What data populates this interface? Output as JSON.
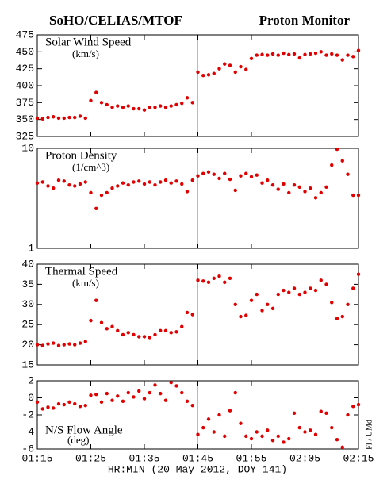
{
  "title_left": "SoHO/CELIAS/MTOF",
  "title_right": "Proton Monitor",
  "xlabel": "HR:MIN (20 May 2012, DOY 141)",
  "credit": "FI / UMd",
  "chart_data": [
    {
      "type": "scatter",
      "title": "Solar Wind Speed",
      "unit": "(km/s)",
      "color": "#e00000",
      "x": [
        75,
        76,
        77,
        78,
        79,
        80,
        81,
        82,
        83,
        84,
        85,
        86,
        87,
        88,
        89,
        90,
        91,
        92,
        93,
        94,
        95,
        96,
        97,
        98,
        99,
        100,
        101,
        102,
        103,
        104,
        105,
        106,
        107,
        108,
        109,
        110,
        111,
        112,
        113,
        114,
        115,
        116,
        117,
        118,
        119,
        120,
        121,
        122,
        123,
        124,
        125,
        126,
        127,
        128,
        129,
        130,
        131,
        132,
        133,
        134,
        135
      ],
      "values": [
        352,
        351,
        353,
        354,
        352,
        352,
        353,
        353,
        355,
        352,
        378,
        390,
        375,
        372,
        368,
        370,
        368,
        370,
        366,
        366,
        364,
        368,
        368,
        370,
        368,
        370,
        372,
        374,
        382,
        375,
        420,
        415,
        416,
        418,
        425,
        432,
        430,
        420,
        428,
        424,
        440,
        445,
        446,
        445,
        447,
        445,
        448,
        446,
        447,
        441,
        446,
        447,
        448,
        450,
        445,
        447,
        445,
        438,
        445,
        443,
        452
      ],
      "xlim": [
        75,
        135
      ],
      "xticks": [
        75,
        85,
        95,
        105,
        115,
        125,
        135
      ],
      "vline": 105,
      "ylim": [
        325,
        475
      ],
      "yticks": [
        325,
        350,
        375,
        400,
        425,
        450,
        475
      ]
    },
    {
      "type": "scatter",
      "title": "Proton Density",
      "unit": "(1/cm^3)",
      "color": "#e00000",
      "log_scale": true,
      "x": [
        75,
        76,
        77,
        78,
        79,
        80,
        81,
        82,
        83,
        84,
        85,
        86,
        87,
        88,
        89,
        90,
        91,
        92,
        93,
        94,
        95,
        96,
        97,
        98,
        99,
        100,
        101,
        102,
        103,
        104,
        105,
        106,
        107,
        108,
        109,
        110,
        111,
        112,
        113,
        114,
        115,
        116,
        117,
        118,
        119,
        120,
        121,
        122,
        123,
        124,
        125,
        126,
        127,
        128,
        129,
        130,
        131,
        132,
        133,
        134,
        135
      ],
      "values": [
        4.5,
        4.6,
        4.2,
        4.0,
        4.8,
        4.7,
        4.3,
        4.2,
        4.4,
        4.6,
        3.6,
        2.5,
        3.4,
        3.6,
        4.0,
        4.2,
        4.5,
        4.3,
        4.6,
        4.7,
        4.4,
        4.6,
        4.3,
        4.6,
        4.8,
        4.5,
        4.7,
        4.4,
        3.7,
        4.8,
        5.3,
        5.6,
        5.8,
        5.5,
        5.0,
        5.6,
        4.9,
        3.8,
        5.3,
        5.6,
        5.2,
        5.4,
        4.5,
        4.8,
        4.3,
        3.9,
        4.4,
        3.6,
        4.3,
        4.1,
        3.7,
        4.0,
        3.2,
        3.6,
        4.1,
        6.8,
        9.8,
        7.5,
        5.5,
        3.4,
        3.4
      ],
      "xlim": [
        75,
        135
      ],
      "xticks": [
        75,
        85,
        95,
        105,
        115,
        125,
        135
      ],
      "vline": 105,
      "ylim": [
        1,
        10
      ],
      "yticks": [
        1,
        10
      ]
    },
    {
      "type": "scatter",
      "title": "Thermal Speed",
      "unit": "(km/s)",
      "color": "#e00000",
      "x": [
        75,
        76,
        77,
        78,
        79,
        80,
        81,
        82,
        83,
        84,
        85,
        86,
        87,
        88,
        89,
        90,
        91,
        92,
        93,
        94,
        95,
        96,
        97,
        98,
        99,
        100,
        101,
        102,
        103,
        104,
        105,
        106,
        107,
        108,
        109,
        110,
        111,
        112,
        113,
        114,
        115,
        116,
        117,
        118,
        119,
        120,
        121,
        122,
        123,
        124,
        125,
        126,
        127,
        128,
        129,
        130,
        131,
        132,
        133,
        134,
        135
      ],
      "values": [
        20,
        19.8,
        20.2,
        20.4,
        19.8,
        20,
        20.2,
        20,
        20.4,
        20.8,
        26,
        31,
        25.5,
        24,
        24.5,
        23.5,
        22.5,
        23,
        22.5,
        22,
        22,
        21.8,
        22.5,
        23.5,
        23.5,
        23,
        23.2,
        24.5,
        28,
        27.5,
        36,
        35.8,
        35.5,
        36.5,
        37,
        35.5,
        36.5,
        30,
        27,
        27.3,
        31,
        32.5,
        28.5,
        30,
        29,
        32.5,
        33.5,
        33,
        34,
        32.5,
        33,
        34,
        33.5,
        36,
        35,
        30.5,
        26.5,
        27,
        30,
        34,
        37.5
      ],
      "xlim": [
        75,
        135
      ],
      "xticks": [
        75,
        85,
        95,
        105,
        115,
        125,
        135
      ],
      "vline": 105,
      "ylim": [
        15,
        40
      ],
      "yticks": [
        15,
        20,
        25,
        30,
        35,
        40
      ]
    },
    {
      "type": "scatter",
      "title": "N/S Flow Angle",
      "unit": "(deg)",
      "color": "#e00000",
      "x": [
        75,
        76,
        77,
        78,
        79,
        80,
        81,
        82,
        83,
        84,
        85,
        86,
        87,
        88,
        89,
        90,
        91,
        92,
        93,
        94,
        95,
        96,
        97,
        98,
        99,
        100,
        101,
        102,
        103,
        104,
        105,
        106,
        107,
        108,
        109,
        110,
        111,
        112,
        113,
        114,
        115,
        116,
        117,
        118,
        119,
        120,
        121,
        122,
        123,
        124,
        125,
        126,
        127,
        128,
        129,
        130,
        131,
        132,
        133,
        134,
        135
      ],
      "values": [
        -0.5,
        -1.3,
        -1.1,
        -1.2,
        -0.7,
        -0.8,
        -0.5,
        -0.7,
        -1.0,
        -0.9,
        0.3,
        0.4,
        -0.5,
        0.5,
        -0.3,
        0.2,
        -0.4,
        0.6,
        0.1,
        0.8,
        -0.1,
        0.6,
        1.5,
        0.5,
        -0.3,
        1.8,
        1.4,
        0.6,
        -0.4,
        -0.9,
        -4.3,
        -3.5,
        -2.5,
        -4.0,
        -2.0,
        -4.5,
        -1.5,
        0.6,
        -3.0,
        -4.5,
        -4.8,
        -4.0,
        -4.5,
        -3.8,
        -5.0,
        -4.5,
        -5.2,
        -4.8,
        -1.8,
        -3.5,
        -4.0,
        -3.8,
        -4.3,
        -1.6,
        -1.8,
        -3.5,
        -4.9,
        -5.8,
        -2.0,
        -1.0,
        -0.8
      ],
      "xlim": [
        75,
        135
      ],
      "xticks": [
        {
          "value": 75,
          "label": "01:15"
        },
        {
          "value": 85,
          "label": "01:25"
        },
        {
          "value": 95,
          "label": "01:35"
        },
        {
          "value": 105,
          "label": "01:45"
        },
        {
          "value": 115,
          "label": "01:55"
        },
        {
          "value": 125,
          "label": "02:05"
        },
        {
          "value": 135,
          "label": "02:15"
        }
      ],
      "vline": 105,
      "ylim": [
        -6,
        2
      ],
      "yticks": [
        -6,
        -4,
        -2,
        0,
        2
      ]
    }
  ]
}
